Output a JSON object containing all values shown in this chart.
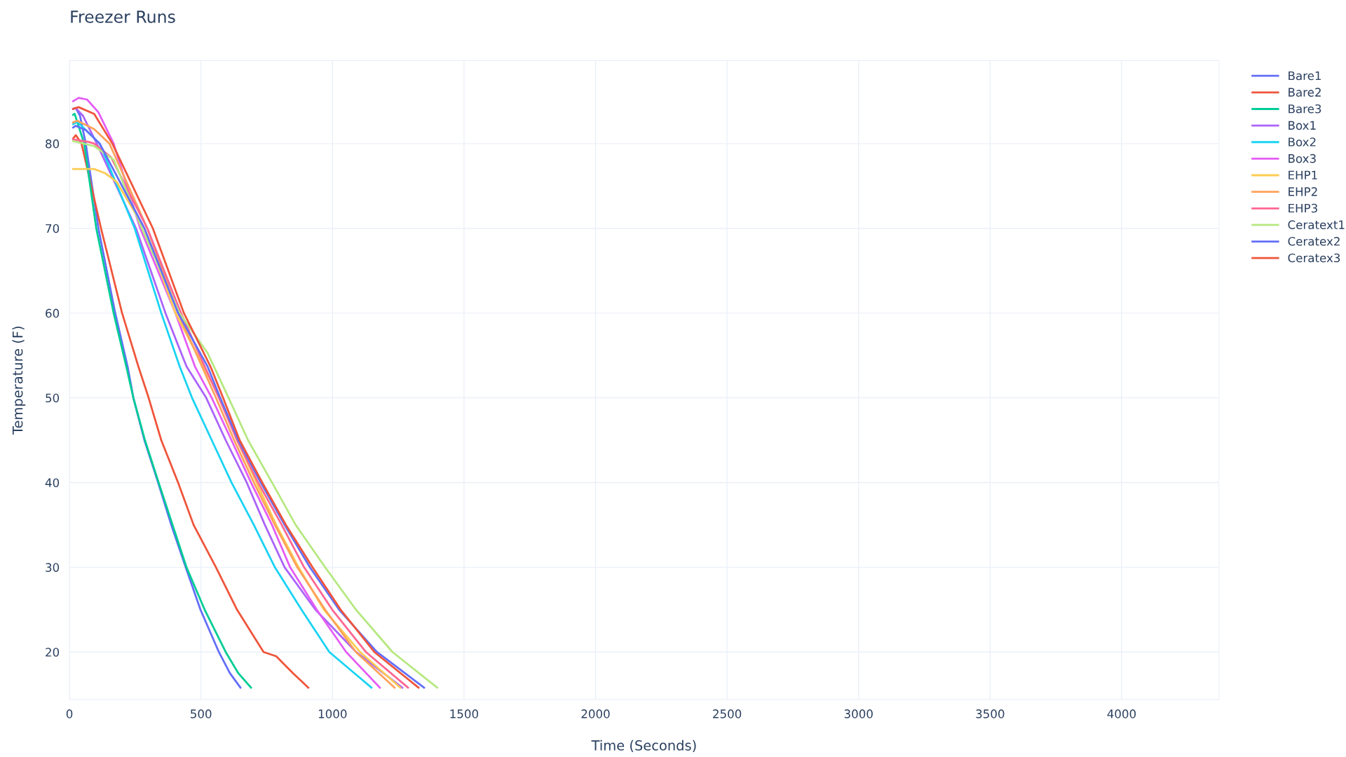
{
  "chart_data": {
    "type": "line",
    "title": "Freezer Runs",
    "xlabel": "Time (Seconds)",
    "ylabel": "Temperature (F)",
    "xlim": [
      0,
      4370
    ],
    "ylim": [
      14.4,
      89.8
    ],
    "xticks": [
      0,
      500,
      1000,
      1500,
      2000,
      2500,
      3000,
      3500,
      4000
    ],
    "yticks": [
      20,
      30,
      40,
      50,
      60,
      70,
      80
    ],
    "grid": true,
    "legend": "top right",
    "marker": "none",
    "line_style": "solid",
    "series": [
      {
        "name": "Bare1",
        "color": "#636efa",
        "x": [
          14,
          24,
          40,
          62,
          110,
          174,
          221,
          243,
          285,
          337,
          387,
          442,
          498,
          568,
          610,
          650
        ],
        "values": [
          84.1,
          84.2,
          83.3,
          80,
          70,
          60,
          53.7,
          50,
          45,
          40,
          35,
          30,
          25,
          20,
          17.5,
          15.8
        ]
      },
      {
        "name": "Bare2",
        "color": "#ef553b",
        "x": [
          14,
          24,
          46,
          120,
          200,
          262,
          301,
          349,
          413,
          472,
          557,
          637,
          738,
          786,
          850,
          908
        ],
        "values": [
          80.6,
          81.0,
          80,
          70,
          60,
          53.7,
          50,
          45,
          40,
          35,
          30,
          25,
          20,
          19.5,
          17.5,
          15.8
        ]
      },
      {
        "name": "Bare3",
        "color": "#00cc96",
        "x": [
          14,
          20,
          56,
          102,
          168,
          216,
          243,
          287,
          339,
          392,
          445,
          514,
          594,
          642,
          690
        ],
        "values": [
          83.4,
          83.5,
          80,
          70,
          60,
          53.7,
          50,
          45,
          40,
          35,
          30,
          25,
          20,
          17.5,
          15.8
        ]
      },
      {
        "name": "Box1",
        "color": "#ab63fa",
        "x": [
          14,
          24,
          51,
          104,
          253,
          365,
          445,
          520,
          594,
          674,
          743,
          818,
          935,
          1090,
          1265
        ],
        "values": [
          84.1,
          84.2,
          83.3,
          80,
          70,
          60,
          53.7,
          50,
          45,
          40,
          35,
          30,
          25,
          20,
          15.8
        ]
      },
      {
        "name": "Box2",
        "color": "#19d3f3",
        "x": [
          14,
          30,
          115,
          248,
          349,
          419,
          466,
          541,
          616,
          701,
          781,
          882,
          988,
          1148
        ],
        "values": [
          82.3,
          82.6,
          80,
          70,
          60,
          53.7,
          50,
          45,
          40,
          35,
          30,
          25,
          20,
          15.8
        ]
      },
      {
        "name": "Box3",
        "color": "#e45cf5",
        "x": [
          14,
          35,
          67,
          110,
          168,
          269,
          403,
          477,
          541,
          616,
          690,
          770,
          839,
          940,
          1052,
          1180
        ],
        "values": [
          85.0,
          85.4,
          85.2,
          83.7,
          80,
          70,
          60,
          53.7,
          50,
          45,
          40,
          35,
          30,
          25,
          20,
          15.8
        ]
      },
      {
        "name": "EHP1",
        "color": "#fecb52",
        "x": [
          14,
          94,
          136,
          179,
          285,
          403,
          509,
          573,
          637,
          711,
          786,
          871,
          967,
          1105,
          1258
        ],
        "values": [
          77.0,
          77.0,
          76.5,
          75.5,
          70,
          60,
          53.7,
          50,
          45,
          40,
          35,
          30,
          25,
          20,
          15.8
        ]
      },
      {
        "name": "EHP2",
        "color": "#ffa15a",
        "x": [
          14,
          30,
          94,
          152,
          296,
          413,
          504,
          557,
          626,
          701,
          781,
          866,
          972,
          1089,
          1236
        ],
        "values": [
          82.5,
          82.7,
          81.7,
          80,
          70,
          60,
          53.7,
          50,
          45,
          40,
          35,
          30,
          25,
          20,
          15.8
        ]
      },
      {
        "name": "EHP3",
        "color": "#ff6692",
        "x": [
          14,
          72,
          94,
          158,
          296,
          424,
          514,
          568,
          637,
          717,
          807,
          892,
          999,
          1127,
          1287
        ],
        "values": [
          80.5,
          80.2,
          80,
          78.4,
          70,
          60,
          53.7,
          50,
          45,
          40,
          35,
          30,
          25,
          20,
          15.8
        ]
      },
      {
        "name": "Ceratext1",
        "color": "#b6e880",
        "x": [
          14,
          94,
          168,
          275,
          418,
          525,
          605,
          679,
          770,
          860,
          972,
          1089,
          1228,
          1398
        ],
        "values": [
          80.3,
          79.7,
          78.1,
          70,
          60,
          55.3,
          50,
          45,
          40,
          35,
          30,
          25,
          20,
          15.8
        ]
      },
      {
        "name": "Ceratex2",
        "color": "#636efa",
        "x": [
          14,
          24,
          62,
          115,
          285,
          413,
          525,
          573,
          642,
          727,
          818,
          914,
          1025,
          1169,
          1348
        ],
        "values": [
          81.9,
          82.1,
          81.6,
          80,
          70,
          60,
          53.7,
          50,
          45,
          40,
          35,
          30,
          25,
          20,
          15.8
        ]
      },
      {
        "name": "Ceratex3",
        "color": "#ef553b",
        "x": [
          14,
          35,
          94,
          163,
          317,
          435,
          536,
          584,
          647,
          733,
          823,
          924,
          1031,
          1159,
          1327
        ],
        "values": [
          84.1,
          84.3,
          83.5,
          80,
          70,
          60,
          53.7,
          50,
          45,
          40,
          35,
          30,
          25,
          20,
          15.8
        ]
      }
    ]
  }
}
